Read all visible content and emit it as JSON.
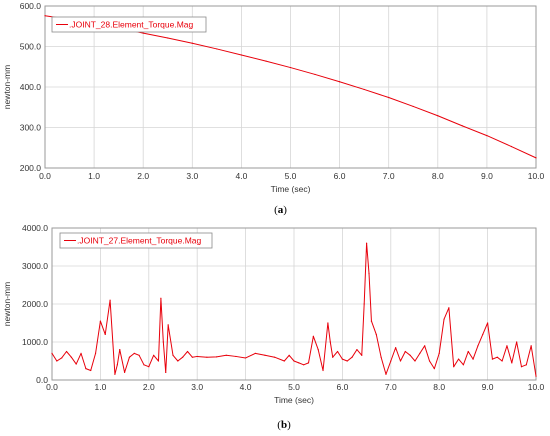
{
  "colors": {
    "series": "#e8000b",
    "plot_bg": "#ffffff",
    "grid": "#d6d6d6",
    "frame": "#9a9a9a"
  },
  "chart_data": [
    {
      "type": "line",
      "caption_open": "(",
      "caption_letter": "a",
      "caption_close": ")",
      "title": "",
      "xlabel": "Time (sec)",
      "ylabel": "newton-mm",
      "xlim": [
        0,
        10
      ],
      "ylim": [
        200,
        600
      ],
      "xticks": [
        0,
        1,
        2,
        3,
        4,
        5,
        6,
        7,
        8,
        9,
        10
      ],
      "xtick_labels": [
        "0.0",
        "1.0",
        "2.0",
        "3.0",
        "4.0",
        "5.0",
        "6.0",
        "7.0",
        "8.0",
        "9.0",
        "10.0"
      ],
      "yticks": [
        200,
        300,
        400,
        500,
        600
      ],
      "ytick_labels": [
        "200.0",
        "300.0",
        "400.0",
        "500.0",
        "600.0"
      ],
      "grid": true,
      "legend_placement": "top-left",
      "series": [
        {
          "name": ".JOINT_28.Element_Torque.Mag",
          "x": [
            0,
            0.5,
            1,
            1.5,
            2,
            2.5,
            3,
            3.5,
            4,
            4.5,
            5,
            5.5,
            6,
            6.5,
            7,
            7.5,
            8,
            8.5,
            9,
            9.5,
            10
          ],
          "y": [
            576,
            567,
            558,
            546,
            533,
            521,
            508,
            494,
            479,
            464,
            448,
            431,
            413,
            394,
            374,
            352,
            329,
            304,
            280,
            253,
            225
          ]
        }
      ]
    },
    {
      "type": "line",
      "caption_open": "(",
      "caption_letter": "b",
      "caption_close": ")",
      "title": "",
      "xlabel": "Time (sec)",
      "ylabel": "newton-mm",
      "xlim": [
        0,
        10
      ],
      "ylim": [
        0,
        4000
      ],
      "xticks": [
        0,
        1,
        2,
        3,
        4,
        5,
        6,
        7,
        8,
        9,
        10
      ],
      "xtick_labels": [
        "0.0",
        "1.0",
        "2.0",
        "3.0",
        "4.0",
        "5.0",
        "6.0",
        "7.0",
        "8.0",
        "9.0",
        "10.0"
      ],
      "yticks": [
        0,
        1000,
        2000,
        3000,
        4000
      ],
      "ytick_labels": [
        "0.0",
        "1000.0",
        "2000.0",
        "3000.0",
        "4000.0"
      ],
      "grid": true,
      "legend_placement": "top-left",
      "series": [
        {
          "name": ".JOINT_27.Element_Torque.Mag",
          "x": [
            0,
            0.1,
            0.2,
            0.3,
            0.4,
            0.5,
            0.6,
            0.7,
            0.8,
            0.9,
            1.0,
            1.1,
            1.2,
            1.3,
            1.35,
            1.4,
            1.5,
            1.6,
            1.7,
            1.8,
            1.9,
            2.0,
            2.1,
            2.2,
            2.25,
            2.3,
            2.35,
            2.4,
            2.5,
            2.6,
            2.7,
            2.8,
            2.9,
            3.0,
            3.2,
            3.4,
            3.6,
            3.8,
            4.0,
            4.2,
            4.4,
            4.6,
            4.8,
            4.9,
            5.0,
            5.1,
            5.2,
            5.3,
            5.4,
            5.5,
            5.6,
            5.7,
            5.75,
            5.8,
            5.9,
            6.0,
            6.1,
            6.2,
            6.3,
            6.4,
            6.45,
            6.5,
            6.55,
            6.6,
            6.7,
            6.8,
            6.9,
            7.0,
            7.1,
            7.2,
            7.3,
            7.4,
            7.5,
            7.6,
            7.7,
            7.8,
            7.9,
            8.0,
            8.1,
            8.2,
            8.3,
            8.4,
            8.5,
            8.6,
            8.7,
            8.8,
            8.9,
            9.0,
            9.1,
            9.2,
            9.3,
            9.4,
            9.5,
            9.6,
            9.7,
            9.8,
            9.9,
            10.0
          ],
          "y": [
            700,
            500,
            580,
            750,
            600,
            420,
            700,
            300,
            250,
            700,
            1550,
            1200,
            2100,
            150,
            400,
            800,
            200,
            600,
            700,
            650,
            400,
            350,
            650,
            500,
            2150,
            1000,
            200,
            1450,
            650,
            500,
            600,
            750,
            600,
            620,
            600,
            610,
            650,
            620,
            580,
            700,
            650,
            600,
            500,
            650,
            500,
            450,
            400,
            450,
            1150,
            800,
            250,
            1500,
            1000,
            600,
            750,
            550,
            500,
            600,
            800,
            650,
            2000,
            3600,
            2800,
            1550,
            1200,
            600,
            150,
            500,
            850,
            500,
            750,
            650,
            500,
            700,
            900,
            500,
            300,
            700,
            1600,
            1900,
            350,
            550,
            400,
            750,
            550,
            900,
            1200,
            1500,
            550,
            600,
            500,
            900,
            450,
            1000,
            350,
            400,
            900,
            100
          ]
        }
      ]
    }
  ]
}
